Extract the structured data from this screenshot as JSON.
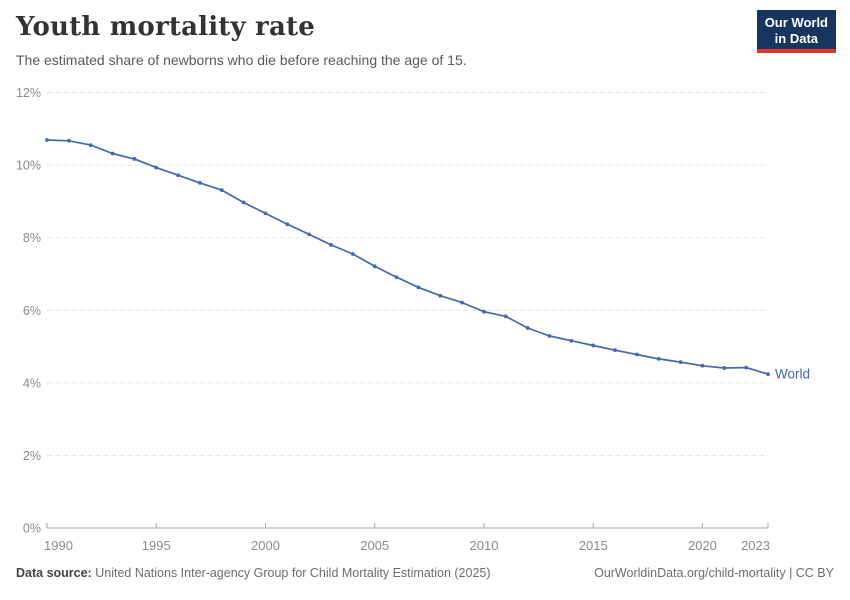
{
  "header": {
    "title": "Youth mortality rate",
    "subtitle": "The estimated share of newborns who die before reaching the age of 15."
  },
  "logo": {
    "line1": "Our World",
    "line2": "in Data",
    "bg_color": "#16355f",
    "accent_color": "#dc372e"
  },
  "chart_data": {
    "type": "line",
    "title": "Youth mortality rate",
    "x": [
      1990,
      1991,
      1992,
      1993,
      1994,
      1995,
      1996,
      1997,
      1998,
      1999,
      2000,
      2001,
      2002,
      2003,
      2004,
      2005,
      2006,
      2007,
      2008,
      2009,
      2010,
      2011,
      2012,
      2013,
      2014,
      2015,
      2016,
      2017,
      2018,
      2019,
      2020,
      2021,
      2022,
      2023
    ],
    "series": [
      {
        "name": "World",
        "color": "#4468a9",
        "values": [
          10.69,
          10.67,
          10.55,
          10.32,
          10.17,
          9.93,
          9.72,
          9.51,
          9.31,
          8.97,
          8.67,
          8.37,
          8.09,
          7.8,
          7.55,
          7.21,
          6.91,
          6.63,
          6.4,
          6.21,
          5.96,
          5.83,
          5.51,
          5.29,
          5.16,
          5.03,
          4.9,
          4.78,
          4.66,
          4.57,
          4.47,
          4.41,
          4.42,
          4.24
        ]
      }
    ],
    "ylim": [
      0,
      12
    ],
    "yticks": [
      0,
      2,
      4,
      6,
      8,
      10,
      12
    ],
    "ytick_suffix": "%",
    "xticks": [
      1990,
      1995,
      2000,
      2005,
      2010,
      2015,
      2020,
      2023
    ],
    "grid": "horizontal-dashed",
    "grid_color": "#e2e2e2",
    "axis_color": "#a6a6a6",
    "tick_label_color": "#8b8b8b",
    "legend_position": "end-of-line"
  },
  "footer": {
    "source_label": "Data source:",
    "source_text": "United Nations Inter-agency Group for Child Mortality Estimation (2025)",
    "link_text": "OurWorldinData.org/child-mortality | CC BY"
  }
}
